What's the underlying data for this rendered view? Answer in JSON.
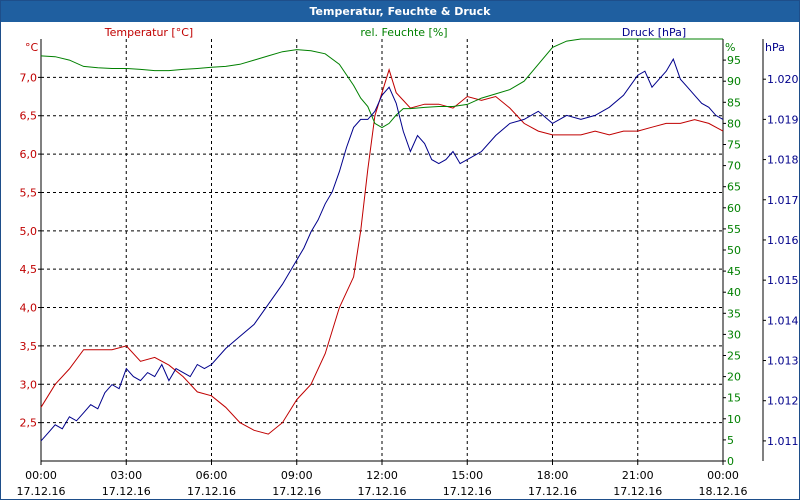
{
  "window": {
    "title": "Temperatur, Feuchte & Druck"
  },
  "colors": {
    "temperature": "#c00000",
    "humidity": "#008000",
    "pressure": "#00008b",
    "axis": "#000000",
    "grid": "#000000"
  },
  "chart_data": {
    "type": "line",
    "title": "Temperatur, Feuchte & Druck",
    "grid": true,
    "x_ticks": [
      {
        "time": "00:00",
        "date": "17.12.16"
      },
      {
        "time": "03:00",
        "date": "17.12.16"
      },
      {
        "time": "06:00",
        "date": "17.12.16"
      },
      {
        "time": "09:00",
        "date": "17.12.16"
      },
      {
        "time": "12:00",
        "date": "17.12.16"
      },
      {
        "time": "15:00",
        "date": "17.12.16"
      },
      {
        "time": "18:00",
        "date": "17.12.16"
      },
      {
        "time": "21:00",
        "date": "17.12.16"
      },
      {
        "time": "00:00",
        "date": "18.12.16"
      }
    ],
    "x_range_hours": [
      0,
      24
    ],
    "axes": {
      "temperature": {
        "label": "Temperatur [°C]",
        "unit": "°C",
        "range": [
          2.0,
          7.5
        ],
        "ticks": [
          "2,5",
          "3,0",
          "3,5",
          "4,0",
          "4,5",
          "5,0",
          "5,5",
          "6,0",
          "6,5",
          "7,0"
        ],
        "tick_values": [
          2.5,
          3.0,
          3.5,
          4.0,
          4.5,
          5.0,
          5.5,
          6.0,
          6.5,
          7.0
        ]
      },
      "humidity": {
        "label": "rel. Feuchte [%]",
        "unit": "%",
        "range": [
          0,
          100
        ],
        "ticks": [
          "0",
          "5",
          "10",
          "15",
          "20",
          "25",
          "30",
          "35",
          "40",
          "45",
          "50",
          "55",
          "60",
          "65",
          "70",
          "75",
          "80",
          "85",
          "90",
          "95"
        ],
        "tick_values": [
          0,
          5,
          10,
          15,
          20,
          25,
          30,
          35,
          40,
          45,
          50,
          55,
          60,
          65,
          70,
          75,
          80,
          85,
          90,
          95
        ]
      },
      "pressure": {
        "label": "Druck [hPa]",
        "unit": "hPa",
        "range": [
          1010.5,
          1021.0
        ],
        "ticks": [
          "1.011",
          "1.012",
          "1.013",
          "1.014",
          "1.015",
          "1.016",
          "1.017",
          "1.018",
          "1.019",
          "1.020"
        ],
        "tick_values": [
          1011,
          1012,
          1013,
          1014,
          1015,
          1016,
          1017,
          1018,
          1019,
          1020
        ]
      }
    },
    "series": [
      {
        "name": "Temperatur [°C]",
        "axis": "temperature",
        "x": [
          0,
          0.5,
          1,
          1.5,
          2,
          2.5,
          3,
          3.5,
          4,
          4.5,
          5,
          5.5,
          6,
          6.5,
          7,
          7.5,
          8,
          8.5,
          9,
          9.5,
          10,
          10.5,
          11,
          11.25,
          11.5,
          11.75,
          12,
          12.25,
          12.5,
          12.75,
          13,
          13.5,
          14,
          14.5,
          15,
          15.5,
          16,
          16.5,
          17,
          17.5,
          18,
          18.5,
          19,
          19.5,
          20,
          20.5,
          21,
          21.5,
          22,
          22.5,
          23,
          23.5,
          24
        ],
        "values": [
          2.7,
          3.0,
          3.2,
          3.45,
          3.45,
          3.45,
          3.5,
          3.3,
          3.35,
          3.25,
          3.1,
          2.9,
          2.85,
          2.7,
          2.5,
          2.4,
          2.35,
          2.5,
          2.8,
          3.0,
          3.4,
          4.0,
          4.4,
          5.0,
          5.8,
          6.5,
          6.8,
          7.1,
          6.8,
          6.7,
          6.6,
          6.65,
          6.65,
          6.6,
          6.75,
          6.7,
          6.75,
          6.6,
          6.4,
          6.3,
          6.25,
          6.25,
          6.25,
          6.3,
          6.25,
          6.3,
          6.3,
          6.35,
          6.4,
          6.4,
          6.45,
          6.4,
          6.3
        ]
      },
      {
        "name": "rel. Feuchte [%]",
        "axis": "humidity",
        "x": [
          0,
          0.5,
          1,
          1.5,
          2,
          2.5,
          3,
          3.5,
          4,
          4.5,
          5,
          5.5,
          6,
          6.5,
          7,
          7.5,
          8,
          8.5,
          9,
          9.5,
          10,
          10.5,
          11,
          11.25,
          11.5,
          11.75,
          12,
          12.25,
          12.5,
          12.75,
          13,
          13.5,
          14,
          14.5,
          15,
          15.5,
          16,
          16.5,
          17,
          17.5,
          18,
          18.5,
          19,
          19.5,
          20,
          20.5,
          21,
          21.5,
          22,
          22.5,
          23,
          23.5,
          24
        ],
        "values": [
          96,
          95.8,
          95,
          93.5,
          93.2,
          93,
          93,
          92.8,
          92.5,
          92.5,
          92.8,
          93,
          93.3,
          93.5,
          94,
          95,
          96,
          97,
          97.5,
          97.2,
          96.5,
          94,
          89,
          86,
          84,
          80,
          79,
          80,
          82,
          83.5,
          83.5,
          83.8,
          84,
          84,
          84.5,
          86,
          87,
          88,
          90,
          94,
          98,
          99.5,
          100,
          100,
          100,
          100,
          100,
          100,
          100,
          100,
          100,
          100,
          100
        ]
      },
      {
        "name": "Druck [hPa]",
        "axis": "pressure",
        "x": [
          0,
          0.25,
          0.5,
          0.75,
          1,
          1.25,
          1.5,
          1.75,
          2,
          2.25,
          2.5,
          2.75,
          3,
          3.25,
          3.5,
          3.75,
          4,
          4.25,
          4.5,
          4.75,
          5,
          5.25,
          5.5,
          5.75,
          6,
          6.5,
          7,
          7.5,
          8,
          8.5,
          9,
          9.25,
          9.5,
          9.75,
          10,
          10.25,
          10.5,
          10.75,
          11,
          11.25,
          11.5,
          11.75,
          12,
          12.25,
          12.5,
          12.75,
          13,
          13.25,
          13.5,
          13.75,
          14,
          14.25,
          14.5,
          14.75,
          15,
          15.5,
          16,
          16.5,
          17,
          17.5,
          18,
          18.5,
          19,
          19.5,
          20,
          20.5,
          21,
          21.25,
          21.5,
          21.75,
          22,
          22.25,
          22.5,
          22.75,
          23,
          23.25,
          23.5,
          23.75,
          24
        ],
        "values": [
          1011,
          1011.2,
          1011.4,
          1011.3,
          1011.6,
          1011.5,
          1011.7,
          1011.9,
          1011.8,
          1012.2,
          1012.4,
          1012.3,
          1012.8,
          1012.6,
          1012.5,
          1012.7,
          1012.6,
          1012.9,
          1012.5,
          1012.8,
          1012.7,
          1012.6,
          1012.9,
          1012.8,
          1012.9,
          1013.3,
          1013.6,
          1013.9,
          1014.4,
          1014.9,
          1015.5,
          1015.8,
          1016.2,
          1016.5,
          1016.9,
          1017.2,
          1017.7,
          1018.3,
          1018.8,
          1019.0,
          1019.0,
          1019.2,
          1019.6,
          1019.8,
          1019.4,
          1018.7,
          1018.2,
          1018.6,
          1018.4,
          1018.0,
          1017.9,
          1018.0,
          1018.2,
          1017.9,
          1018.0,
          1018.2,
          1018.6,
          1018.9,
          1019.0,
          1019.2,
          1018.9,
          1019.1,
          1019.0,
          1019.1,
          1019.3,
          1019.6,
          1020.1,
          1020.2,
          1019.8,
          1020.0,
          1020.2,
          1020.5,
          1020.0,
          1019.8,
          1019.6,
          1019.4,
          1019.3,
          1019.1,
          1019.0
        ]
      }
    ]
  }
}
